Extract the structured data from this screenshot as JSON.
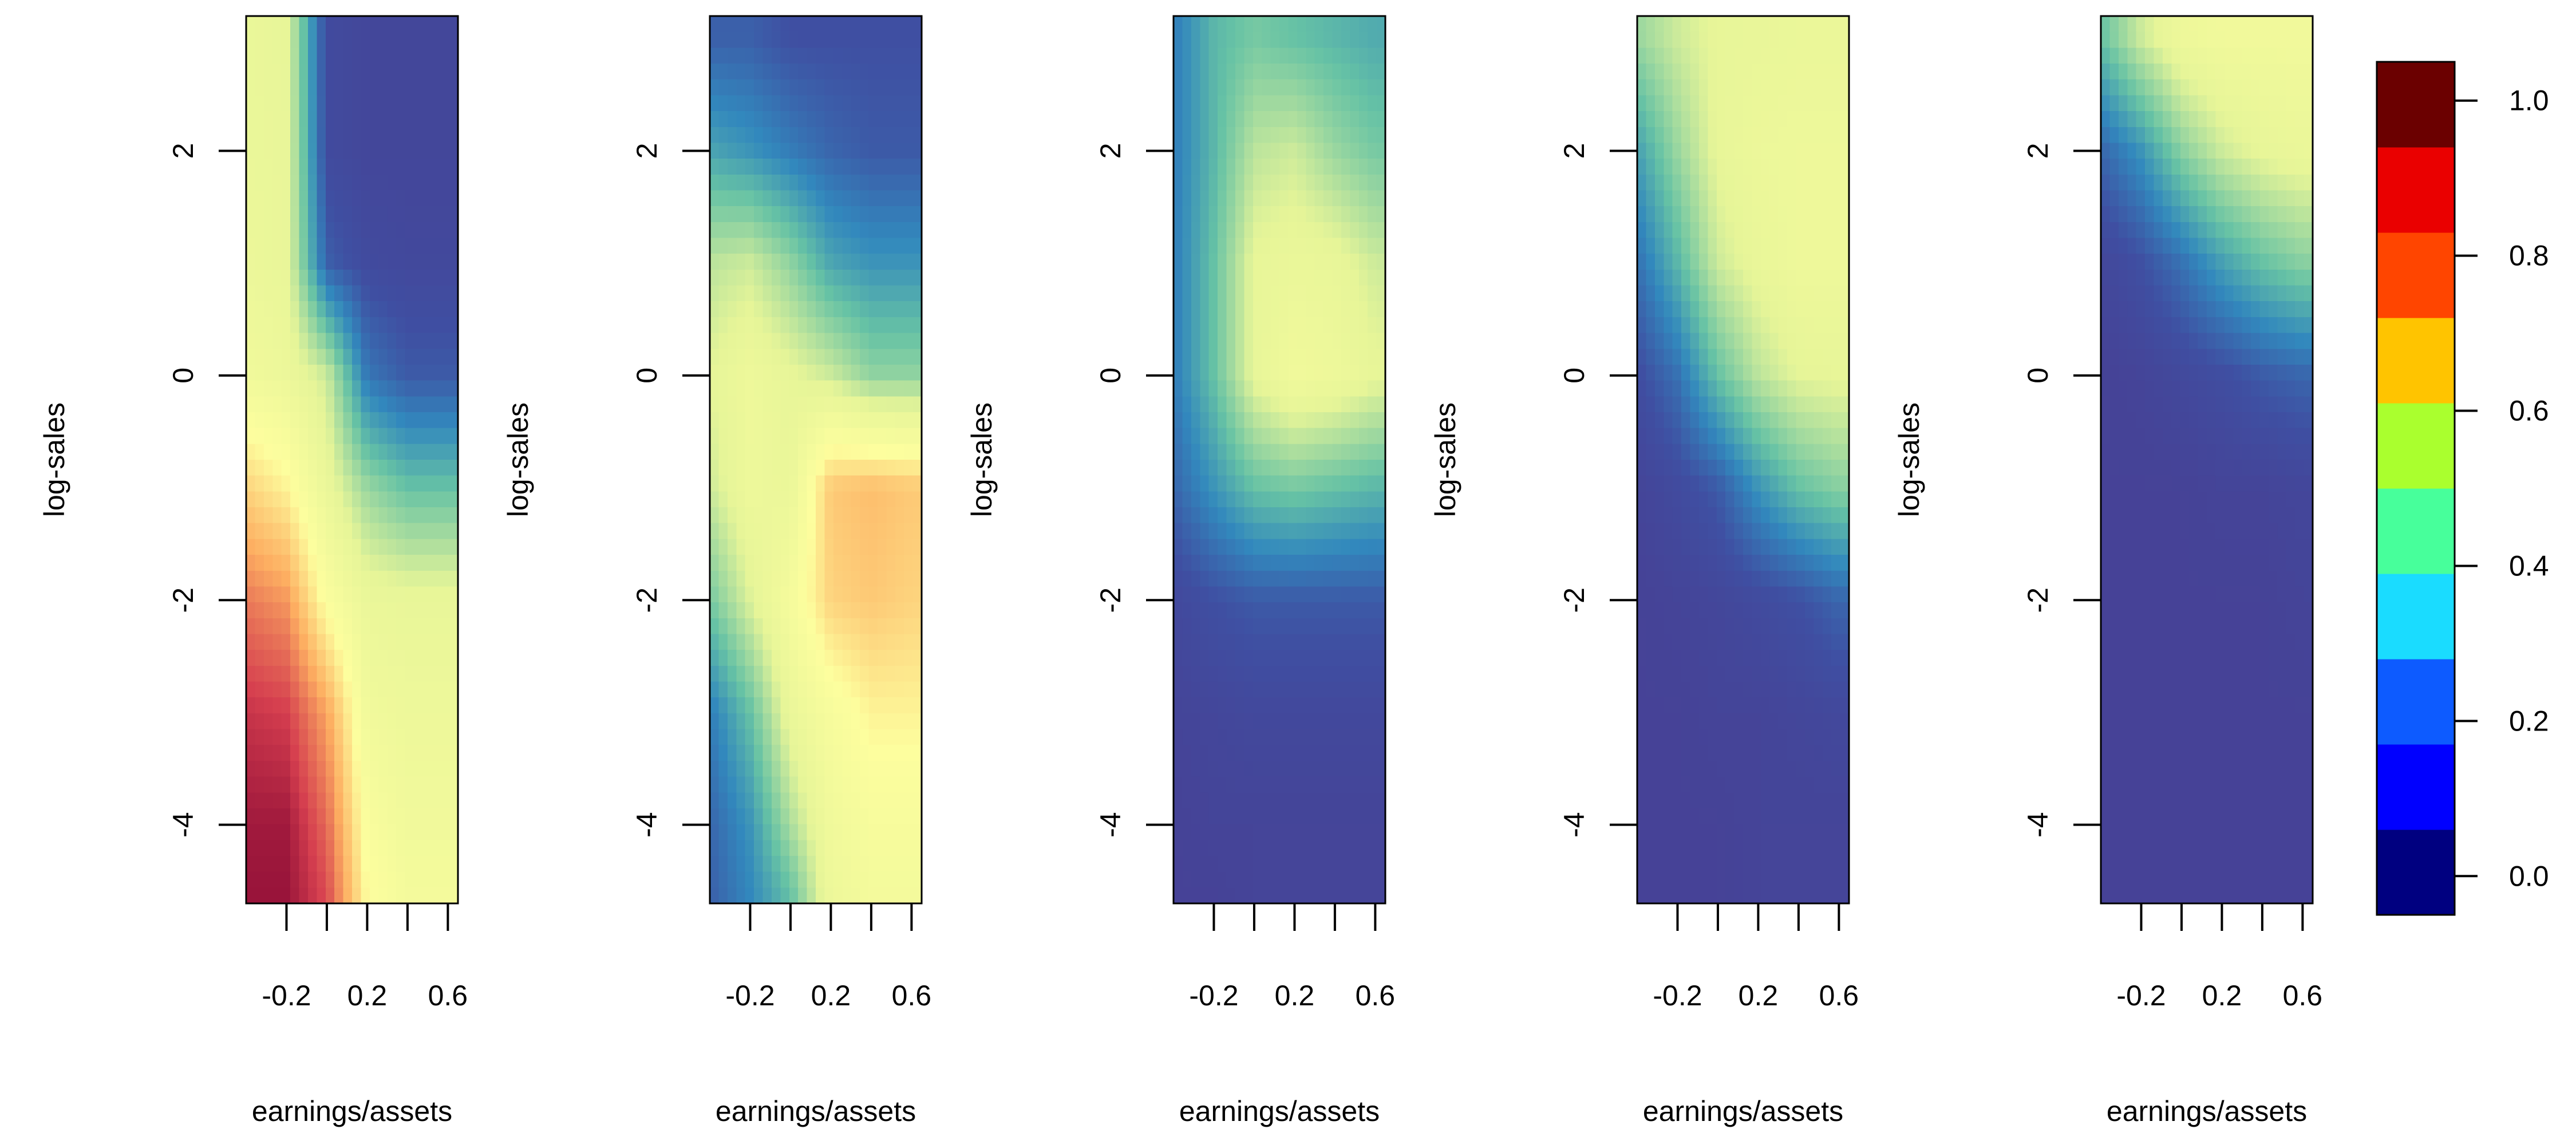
{
  "chart_data": {
    "type": "heatmap",
    "panel_count": 5,
    "xlabel": "earnings/assets",
    "ylabel": "log-sales",
    "x_range": [
      -0.4,
      0.65
    ],
    "y_range": [
      -4.7,
      3.2
    ],
    "x_ticks": [
      -0.2,
      0.0,
      0.2,
      0.4,
      0.6
    ],
    "x_tick_labels": [
      "-0.2",
      "0.2",
      "0.6"
    ],
    "x_labeled_ticks": [
      -0.2,
      0.2,
      0.6
    ],
    "y_ticks": [
      -4,
      -2,
      0,
      2
    ],
    "y_tick_labels": [
      "-4",
      "-2",
      "0",
      "2"
    ],
    "ylabel_shown": [
      true,
      true,
      true,
      true,
      true
    ],
    "grid": false,
    "colorbar": {
      "range": [
        -0.05,
        1.05
      ],
      "ticks": [
        0.0,
        0.2,
        0.4,
        0.6,
        0.8,
        1.0
      ],
      "tick_labels": [
        "0.0",
        "0.2",
        "0.4",
        "0.6",
        "0.8",
        "1.0"
      ],
      "bin_colors": [
        "#000080",
        "#0000ff",
        "#0d5bff",
        "#1adcff",
        "#47ff9b",
        "#aaff2e",
        "#ffc400",
        "#ff4500",
        "#ea0000",
        "#6b0000"
      ]
    },
    "surface_colormap": {
      "stops": [
        0.0,
        0.1,
        0.2,
        0.3,
        0.45,
        0.6,
        0.75,
        0.9,
        1.0
      ],
      "colors": [
        "#4a3a8f",
        "#3f4fa2",
        "#3288bd",
        "#66c2a5",
        "#e6f598",
        "#fdfe9e",
        "#fdae61",
        "#d53e4f",
        "#8a0a35"
      ]
    },
    "panels": [
      {
        "x": [
          -0.4,
          -0.2,
          0.0,
          0.2,
          0.4,
          0.6
        ],
        "y": [
          3.0,
          2.0,
          1.0,
          0.0,
          -1.0,
          -2.0,
          -3.0,
          -4.0,
          -4.6
        ],
        "z": [
          [
            0.48,
            0.46,
            0.08,
            0.06,
            0.06,
            0.06
          ],
          [
            0.48,
            0.47,
            0.08,
            0.06,
            0.06,
            0.06
          ],
          [
            0.49,
            0.47,
            0.13,
            0.08,
            0.07,
            0.07
          ],
          [
            0.52,
            0.49,
            0.42,
            0.17,
            0.12,
            0.12
          ],
          [
            0.68,
            0.62,
            0.48,
            0.36,
            0.3,
            0.3
          ],
          [
            0.82,
            0.78,
            0.58,
            0.48,
            0.47,
            0.47
          ],
          [
            0.92,
            0.9,
            0.76,
            0.52,
            0.5,
            0.5
          ],
          [
            0.97,
            0.97,
            0.84,
            0.57,
            0.52,
            0.52
          ],
          [
            0.98,
            0.98,
            0.88,
            0.6,
            0.54,
            0.54
          ]
        ]
      },
      {
        "x": [
          -0.4,
          -0.2,
          0.0,
          0.2,
          0.4,
          0.6
        ],
        "y": [
          3.0,
          2.0,
          1.0,
          0.0,
          -1.0,
          -2.0,
          -3.0,
          -4.0,
          -4.6
        ],
        "z": [
          [
            0.13,
            0.13,
            0.1,
            0.1,
            0.1,
            0.1
          ],
          [
            0.25,
            0.22,
            0.18,
            0.14,
            0.12,
            0.12
          ],
          [
            0.4,
            0.42,
            0.35,
            0.25,
            0.22,
            0.22
          ],
          [
            0.45,
            0.5,
            0.46,
            0.42,
            0.35,
            0.35
          ],
          [
            0.42,
            0.5,
            0.48,
            0.7,
            0.72,
            0.7
          ],
          [
            0.32,
            0.44,
            0.55,
            0.68,
            0.7,
            0.68
          ],
          [
            0.18,
            0.3,
            0.48,
            0.56,
            0.62,
            0.62
          ],
          [
            0.14,
            0.22,
            0.38,
            0.52,
            0.56,
            0.56
          ],
          [
            0.13,
            0.2,
            0.3,
            0.5,
            0.54,
            0.54
          ]
        ]
      },
      {
        "x": [
          -0.4,
          -0.2,
          0.0,
          0.2,
          0.4,
          0.6
        ],
        "y": [
          3.0,
          2.0,
          1.0,
          0.0,
          -1.0,
          -2.0,
          -3.0,
          -4.0,
          -4.6
        ],
        "z": [
          [
            0.18,
            0.28,
            0.32,
            0.3,
            0.28,
            0.26
          ],
          [
            0.18,
            0.28,
            0.4,
            0.42,
            0.36,
            0.32
          ],
          [
            0.18,
            0.3,
            0.46,
            0.48,
            0.47,
            0.42
          ],
          [
            0.18,
            0.3,
            0.46,
            0.52,
            0.5,
            0.46
          ],
          [
            0.14,
            0.22,
            0.3,
            0.32,
            0.3,
            0.28
          ],
          [
            0.07,
            0.1,
            0.12,
            0.12,
            0.12,
            0.12
          ],
          [
            0.05,
            0.06,
            0.07,
            0.07,
            0.07,
            0.07
          ],
          [
            0.04,
            0.05,
            0.05,
            0.05,
            0.05,
            0.05
          ],
          [
            0.04,
            0.04,
            0.05,
            0.05,
            0.05,
            0.05
          ]
        ]
      },
      {
        "x": [
          -0.4,
          -0.2,
          0.0,
          0.2,
          0.4,
          0.6
        ],
        "y": [
          3.0,
          2.0,
          1.0,
          0.0,
          -1.0,
          -2.0,
          -3.0,
          -4.0,
          -4.6
        ],
        "z": [
          [
            0.36,
            0.42,
            0.46,
            0.47,
            0.48,
            0.48
          ],
          [
            0.24,
            0.36,
            0.46,
            0.49,
            0.5,
            0.5
          ],
          [
            0.16,
            0.28,
            0.42,
            0.47,
            0.5,
            0.5
          ],
          [
            0.09,
            0.16,
            0.3,
            0.4,
            0.45,
            0.46
          ],
          [
            0.05,
            0.08,
            0.12,
            0.22,
            0.3,
            0.34
          ],
          [
            0.04,
            0.05,
            0.06,
            0.08,
            0.1,
            0.14
          ],
          [
            0.04,
            0.04,
            0.05,
            0.05,
            0.06,
            0.07
          ],
          [
            0.04,
            0.04,
            0.04,
            0.05,
            0.05,
            0.05
          ],
          [
            0.04,
            0.04,
            0.04,
            0.05,
            0.05,
            0.05
          ]
        ]
      },
      {
        "x": [
          -0.4,
          -0.2,
          0.0,
          0.2,
          0.4,
          0.6
        ],
        "y": [
          3.0,
          2.0,
          1.0,
          0.0,
          -1.0,
          -2.0,
          -3.0,
          -4.0,
          -4.6
        ],
        "z": [
          [
            0.3,
            0.42,
            0.5,
            0.52,
            0.52,
            0.52
          ],
          [
            0.14,
            0.22,
            0.34,
            0.42,
            0.46,
            0.48
          ],
          [
            0.06,
            0.1,
            0.16,
            0.24,
            0.3,
            0.34
          ],
          [
            0.04,
            0.05,
            0.07,
            0.09,
            0.12,
            0.14
          ],
          [
            0.04,
            0.04,
            0.04,
            0.05,
            0.05,
            0.06
          ],
          [
            0.04,
            0.04,
            0.04,
            0.04,
            0.04,
            0.05
          ],
          [
            0.04,
            0.04,
            0.04,
            0.04,
            0.04,
            0.04
          ],
          [
            0.04,
            0.04,
            0.04,
            0.04,
            0.04,
            0.04
          ],
          [
            0.04,
            0.04,
            0.04,
            0.04,
            0.04,
            0.04
          ]
        ]
      }
    ]
  }
}
